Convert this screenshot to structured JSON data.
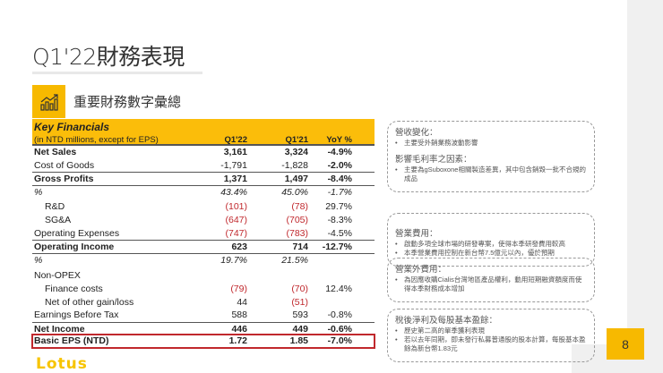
{
  "title": "Q1'22財務表現",
  "section_title": "重要財務數字彙總",
  "page_number": "8",
  "logo": "Lotus",
  "table": {
    "title": "Key Financials",
    "subtitle": "(in NTD millions, except for EPS)",
    "columns": [
      "Q1'22",
      "Q1'21",
      "YoY %"
    ],
    "rows": [
      {
        "label": "Net Sales",
        "v": [
          "3,161",
          "3,324",
          "-4.9%"
        ],
        "style": "b"
      },
      {
        "label": "Cost of Goods",
        "v": [
          "-1,791",
          "-1,828",
          "-2.0%"
        ],
        "style": "cog"
      },
      {
        "label": "Gross Profits",
        "v": [
          "1,371",
          "1,497",
          "-8.4%"
        ],
        "style": "b bt"
      },
      {
        "label": "%",
        "v": [
          "43.4%",
          "45.0%",
          "-1.7%"
        ],
        "style": "i bt"
      },
      {
        "label": "R&D",
        "v": [
          "(101)",
          "(78)",
          "29.7%"
        ],
        "style": "ind red"
      },
      {
        "label": "SG&A",
        "v": [
          "(647)",
          "(705)",
          "-8.3%"
        ],
        "style": "ind red"
      },
      {
        "label": "Operating Expenses",
        "v": [
          "(747)",
          "(783)",
          "-4.5%"
        ],
        "style": "red"
      },
      {
        "label": "Operating Income",
        "v": [
          "623",
          "714",
          "-12.7%"
        ],
        "style": "b bt"
      },
      {
        "label": "%",
        "v": [
          "19.7%",
          "21.5%",
          ""
        ],
        "style": "i bt"
      },
      {
        "label": "Non-OPEX",
        "v": [
          "",
          "",
          ""
        ],
        "style": "gap"
      },
      {
        "label": "Finance costs",
        "v": [
          "(79)",
          "(70)",
          "12.4%"
        ],
        "style": "ind red"
      },
      {
        "label": "Net of other gain/loss",
        "v": [
          "44",
          "(51)",
          ""
        ],
        "style": "ind red2"
      },
      {
        "label": "Earnings Before Tax",
        "v": [
          "588",
          "593",
          "-0.8%"
        ],
        "style": ""
      },
      {
        "label": "Net Income",
        "v": [
          "446",
          "449",
          "-0.6%"
        ],
        "style": "b bt"
      },
      {
        "label": "Basic EPS (NTD)",
        "v": [
          "1.72",
          "1.85",
          "-7.0%"
        ],
        "style": "b eps"
      }
    ]
  },
  "callouts": [
    {
      "sections": [
        {
          "heading": "營收變化：",
          "bullets": [
            "主要受外銷業務波動影響"
          ]
        },
        {
          "heading": "影響毛利率之因素：",
          "bullets": [
            "主要為gSuboxone相關製造差異，其中包含銷毀一批不合規的成品"
          ]
        }
      ]
    },
    {
      "sections": [
        {
          "heading": "營業費用：",
          "bullets": [
            "啟動多項全球市場的研發專案，使得本季研發費用較高",
            "本季營業費用控制在新台幣7.5億元以內，優於預期"
          ]
        }
      ]
    },
    {
      "sections": [
        {
          "heading": "營業外費用：",
          "bullets": [
            "為因應收購Cialis台灣地區產品權利，動用短期融資額度而使得本季財務成本增加"
          ]
        }
      ]
    },
    {
      "sections": [
        {
          "heading": "稅後淨利及每股基本盈餘：",
          "bullets": [
            "歷史第二高的單季獲利表現",
            "若以去年同期，即未發行私募普通股的股本計算，每股基本盈餘為新台幣1.83元"
          ]
        }
      ]
    }
  ],
  "colors": {
    "accent": "#f7b900",
    "negative": "#c0282d",
    "highlight_box": "#c0282d"
  }
}
